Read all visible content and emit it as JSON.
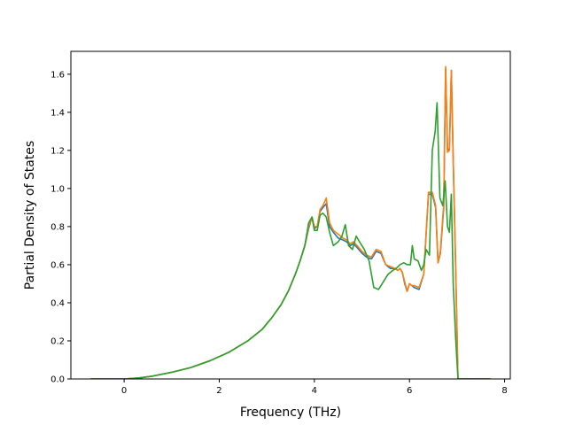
{
  "chart_data": {
    "type": "line",
    "title": "",
    "xlabel": "Frequency (THz)",
    "ylabel": "Partial Density of States",
    "xlim": [
      -1.12,
      8.12
    ],
    "ylim": [
      0.0,
      1.72
    ],
    "xticks": [
      0,
      2,
      4,
      6,
      8
    ],
    "yticks": [
      0.0,
      0.2,
      0.4,
      0.6,
      0.8,
      1.0,
      1.2,
      1.4,
      1.6
    ],
    "ytick_labels": [
      "0.0",
      "0.2",
      "0.4",
      "0.6",
      "0.8",
      "1.0",
      "1.2",
      "1.4",
      "1.6"
    ],
    "grid": false,
    "legend": "none",
    "series": [
      {
        "color": "#1f77b4",
        "x": [
          -0.7,
          -0.4,
          0.0,
          0.3,
          0.6,
          1.0,
          1.4,
          1.8,
          2.2,
          2.6,
          2.9,
          3.1,
          3.3,
          3.45,
          3.6,
          3.7,
          3.8,
          3.88,
          3.95,
          4.0,
          4.06,
          4.12,
          4.18,
          4.25,
          4.32,
          4.4,
          4.5,
          4.6,
          4.68,
          4.75,
          4.82,
          4.9,
          5.0,
          5.1,
          5.2,
          5.3,
          5.4,
          5.5,
          5.6,
          5.7,
          5.75,
          5.8,
          5.85,
          5.9,
          5.95,
          6.0,
          6.05,
          6.1,
          6.2,
          6.3,
          6.4,
          6.48,
          6.55,
          6.6,
          6.65,
          6.72,
          6.76,
          6.8,
          6.84,
          6.88,
          6.92,
          6.97,
          7.02,
          7.1,
          7.3,
          7.5,
          7.7
        ],
        "y": [
          0.0,
          0.0,
          0.0,
          0.005,
          0.015,
          0.035,
          0.06,
          0.095,
          0.14,
          0.2,
          0.26,
          0.32,
          0.39,
          0.46,
          0.55,
          0.62,
          0.7,
          0.79,
          0.85,
          0.79,
          0.8,
          0.88,
          0.9,
          0.92,
          0.8,
          0.77,
          0.74,
          0.73,
          0.72,
          0.7,
          0.71,
          0.69,
          0.66,
          0.64,
          0.63,
          0.67,
          0.66,
          0.6,
          0.58,
          0.58,
          0.57,
          0.58,
          0.56,
          0.5,
          0.46,
          0.5,
          0.49,
          0.48,
          0.47,
          0.55,
          0.97,
          0.97,
          0.9,
          0.61,
          0.66,
          0.9,
          1.63,
          1.2,
          1.21,
          1.62,
          1.15,
          0.6,
          0.0,
          0.0,
          0.0,
          0.0,
          0.0
        ]
      },
      {
        "color": "#ff7f0e",
        "x": [
          -0.7,
          -0.4,
          0.0,
          0.3,
          0.6,
          1.0,
          1.4,
          1.8,
          2.2,
          2.6,
          2.9,
          3.1,
          3.3,
          3.45,
          3.6,
          3.7,
          3.8,
          3.88,
          3.95,
          4.0,
          4.06,
          4.12,
          4.18,
          4.25,
          4.32,
          4.4,
          4.5,
          4.6,
          4.68,
          4.75,
          4.82,
          4.9,
          5.0,
          5.1,
          5.2,
          5.3,
          5.4,
          5.5,
          5.6,
          5.7,
          5.75,
          5.8,
          5.85,
          5.9,
          5.95,
          6.0,
          6.05,
          6.1,
          6.2,
          6.3,
          6.4,
          6.48,
          6.55,
          6.6,
          6.65,
          6.72,
          6.76,
          6.8,
          6.84,
          6.88,
          6.92,
          6.97,
          7.02,
          7.1,
          7.3,
          7.5,
          7.7
        ],
        "y": [
          0.0,
          0.0,
          0.0,
          0.005,
          0.015,
          0.035,
          0.06,
          0.095,
          0.14,
          0.2,
          0.26,
          0.32,
          0.39,
          0.46,
          0.55,
          0.62,
          0.7,
          0.8,
          0.85,
          0.8,
          0.8,
          0.89,
          0.91,
          0.95,
          0.82,
          0.78,
          0.76,
          0.74,
          0.73,
          0.71,
          0.72,
          0.7,
          0.67,
          0.65,
          0.64,
          0.68,
          0.67,
          0.6,
          0.59,
          0.58,
          0.57,
          0.58,
          0.56,
          0.51,
          0.46,
          0.5,
          0.49,
          0.49,
          0.48,
          0.55,
          0.98,
          0.98,
          0.91,
          0.61,
          0.67,
          0.92,
          1.64,
          1.19,
          1.2,
          1.62,
          1.15,
          0.6,
          0.0,
          0.0,
          0.0,
          0.0,
          0.0
        ]
      },
      {
        "color": "#2ca02c",
        "x": [
          -0.7,
          -0.4,
          0.0,
          0.3,
          0.6,
          1.0,
          1.4,
          1.8,
          2.2,
          2.6,
          2.9,
          3.1,
          3.3,
          3.45,
          3.6,
          3.7,
          3.8,
          3.88,
          3.95,
          4.0,
          4.06,
          4.12,
          4.18,
          4.25,
          4.32,
          4.4,
          4.5,
          4.58,
          4.65,
          4.72,
          4.8,
          4.88,
          4.95,
          5.05,
          5.15,
          5.25,
          5.35,
          5.45,
          5.55,
          5.65,
          5.72,
          5.8,
          5.88,
          5.95,
          6.02,
          6.06,
          6.1,
          6.18,
          6.25,
          6.3,
          6.35,
          6.42,
          6.48,
          6.54,
          6.58,
          6.64,
          6.7,
          6.75,
          6.8,
          6.84,
          6.88,
          6.92,
          6.97,
          7.02,
          7.1,
          7.3,
          7.5,
          7.7
        ],
        "y": [
          0.0,
          0.0,
          0.0,
          0.005,
          0.015,
          0.035,
          0.06,
          0.095,
          0.14,
          0.2,
          0.26,
          0.32,
          0.39,
          0.46,
          0.55,
          0.62,
          0.7,
          0.82,
          0.85,
          0.78,
          0.78,
          0.86,
          0.87,
          0.85,
          0.77,
          0.7,
          0.72,
          0.75,
          0.81,
          0.7,
          0.68,
          0.75,
          0.72,
          0.68,
          0.62,
          0.48,
          0.47,
          0.51,
          0.55,
          0.57,
          0.58,
          0.6,
          0.61,
          0.6,
          0.6,
          0.7,
          0.63,
          0.62,
          0.57,
          0.6,
          0.68,
          0.65,
          1.2,
          1.3,
          1.45,
          0.95,
          0.91,
          1.04,
          0.8,
          0.77,
          0.97,
          0.5,
          0.22,
          0.0,
          0.0,
          0.0,
          0.0,
          0.0
        ]
      }
    ]
  }
}
